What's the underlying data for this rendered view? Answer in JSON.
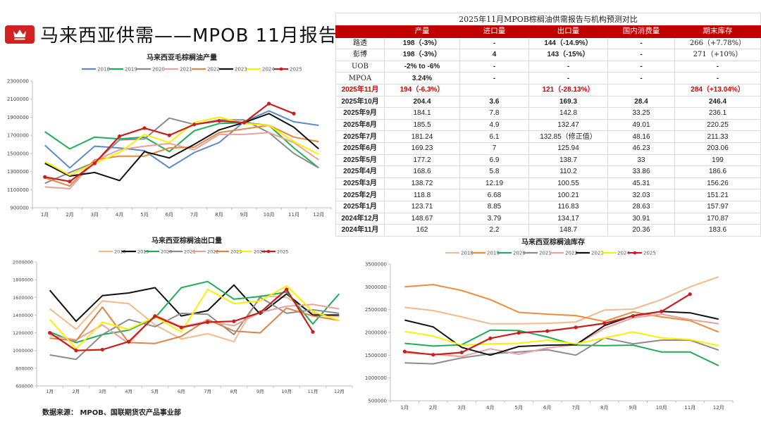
{
  "header": {
    "title": "马来西亚供需——MPOB 11月报告",
    "badge_icon": "crown-icon"
  },
  "table": {
    "caption": "2025年11月MPOB棕榈油供需报告与机构预测对比",
    "columns": [
      "",
      "产量",
      "进口量",
      "出口量",
      "国内消费量",
      "期末库存"
    ],
    "forecast_rows": [
      {
        "label": "路透",
        "cells": [
          "198（-3%）",
          "-",
          "144（-14.9%）",
          "-",
          "266（+7.78%）"
        ]
      },
      {
        "label": "彭博",
        "cells": [
          "198（-3%）",
          "4",
          "143（-15%）",
          "-",
          "271（+10%）"
        ]
      },
      {
        "label": "UOB",
        "cells": [
          "-2% to -6%",
          "-",
          "-",
          "-",
          "-"
        ]
      },
      {
        "label": "MPOA",
        "cells": [
          "3.24%",
          "-",
          "-",
          "-",
          "-"
        ]
      }
    ],
    "actual_row": {
      "label": "2025年11月",
      "cells": [
        "194（-6.3%）",
        "",
        "121（-28.13%）",
        "",
        "284（+13.04%）"
      ]
    },
    "prev_row": {
      "label": "2025年10月",
      "cells": [
        "204.4",
        "3.6",
        "169.3",
        "28.4",
        "246.4"
      ]
    },
    "history_rows": [
      {
        "label": "2025年9月",
        "cells": [
          "184.1",
          "7.8",
          "142.8",
          "33.25",
          "236.1"
        ]
      },
      {
        "label": "2025年8月",
        "cells": [
          "185.5",
          "4.9",
          "132.47",
          "49.01",
          "220.25"
        ]
      },
      {
        "label": "2025年7月",
        "cells": [
          "181.24",
          "6.1",
          "132.85（修正值）",
          "48.16",
          "211.33"
        ]
      },
      {
        "label": "2025年6月",
        "cells": [
          "169.23",
          "7",
          "125.94",
          "46.23",
          "203.06"
        ]
      },
      {
        "label": "2025年5月",
        "cells": [
          "177.2",
          "6.9",
          "138.7",
          "33",
          "199"
        ]
      },
      {
        "label": "2025年4月",
        "cells": [
          "168.6",
          "5.8",
          "110.2",
          "33.86",
          "186.6"
        ]
      },
      {
        "label": "2025年3月",
        "cells": [
          "138.72",
          "12.19",
          "100.55",
          "45.31",
          "156.26"
        ]
      },
      {
        "label": "2025年2月",
        "cells": [
          "118.8",
          "6.68",
          "100.21",
          "32.03",
          "151.21"
        ]
      },
      {
        "label": "2025年1月",
        "cells": [
          "123.71",
          "8.85",
          "116.83",
          "28.63",
          "157.97"
        ]
      },
      {
        "label": "2024年12月",
        "cells": [
          "148.67",
          "3.79",
          "134.17",
          "30.91",
          "170.87"
        ]
      },
      {
        "label": "2024年11月",
        "cells": [
          "162",
          "2.2",
          "148.7",
          "20.36",
          "183.6"
        ]
      }
    ]
  },
  "source_note": "数据来源：  MPOB、国联期货农产品事业部",
  "chart_data": [
    {
      "id": "production",
      "type": "line",
      "title": "马来西亚毛棕榈油产量",
      "xlabel": "",
      "ylabel": "",
      "categories": [
        "1月",
        "2月",
        "3月",
        "4月",
        "5月",
        "6月",
        "7月",
        "8月",
        "9月",
        "10月",
        "11月",
        "12月"
      ],
      "ylim": [
        900000,
        2300000
      ],
      "yticks": [
        900000,
        1100000,
        1300000,
        1500000,
        1700000,
        1900000,
        2100000,
        2300000
      ],
      "legend": "top",
      "grid": false,
      "series": [
        {
          "name": "2018",
          "color": "#5b8cc8",
          "values": [
            1590000,
            1340000,
            1580000,
            1560000,
            1530000,
            1340000,
            1510000,
            1620000,
            1850000,
            1970000,
            1850000,
            1810000
          ]
        },
        {
          "name": "2019",
          "color": "#1fae58",
          "values": [
            1740000,
            1550000,
            1680000,
            1660000,
            1680000,
            1520000,
            1750000,
            1830000,
            1840000,
            1810000,
            1560000,
            1340000
          ]
        },
        {
          "name": "2020",
          "color": "#8c8c8c",
          "values": [
            1170000,
            1290000,
            1400000,
            1650000,
            1660000,
            1890000,
            1820000,
            1870000,
            1870000,
            1730000,
            1500000,
            1340000
          ]
        },
        {
          "name": "2021",
          "color": "#e8a0a0",
          "values": [
            1130000,
            1110000,
            1420000,
            1540000,
            1580000,
            1610000,
            1540000,
            1710000,
            1710000,
            1730000,
            1620000,
            1430000
          ]
        },
        {
          "name": "2022",
          "color": "#e38a3c",
          "values": [
            1230000,
            1140000,
            1430000,
            1470000,
            1470000,
            1560000,
            1570000,
            1730000,
            1770000,
            1810000,
            1680000,
            1630000
          ]
        },
        {
          "name": "2023",
          "color": "#111111",
          "values": [
            1390000,
            1250000,
            1290000,
            1200000,
            1520000,
            1450000,
            1600000,
            1760000,
            1840000,
            1940000,
            1790000,
            1550000
          ]
        },
        {
          "name": "2024",
          "color": "#ffee00",
          "values": [
            1410000,
            1260000,
            1390000,
            1510000,
            1710000,
            1620000,
            1840000,
            1900000,
            1830000,
            1810000,
            1630000,
            1490000
          ]
        },
        {
          "name": "2025",
          "color": "#c81e1e",
          "marker": true,
          "values": [
            1240000,
            1190000,
            1390000,
            1690000,
            1780000,
            1700000,
            1820000,
            1860000,
            1840000,
            2050000,
            1940000,
            null
          ]
        }
      ]
    },
    {
      "id": "exports",
      "type": "line",
      "title": "马来西亚棕榈油出口量",
      "xlabel": "",
      "ylabel": "",
      "categories": [
        "1月",
        "2月",
        "3月",
        "4月",
        "5月",
        "6月",
        "7月",
        "8月",
        "9月",
        "10月",
        "11月",
        "12月"
      ],
      "ylim": [
        600000,
        2000000
      ],
      "yticks": [
        600000,
        800000,
        1000000,
        1200000,
        1400000,
        1600000,
        1800000,
        2000000
      ],
      "legend": "top",
      "grid": false,
      "series": [
        {
          "name": "2018",
          "color": "#f5b98a",
          "values": [
            1470000,
            1240000,
            1560000,
            1530000,
            1290000,
            1130000,
            1190000,
            1100000,
            1620000,
            1600000,
            1420000,
            1380000
          ]
        },
        {
          "name": "2019",
          "color": "#111111",
          "values": [
            1680000,
            1330000,
            1620000,
            1650000,
            1710000,
            1390000,
            1450000,
            1740000,
            1410000,
            1640000,
            1400000,
            1400000
          ]
        },
        {
          "name": "2020",
          "color": "#1fae58",
          "values": [
            1210000,
            1090000,
            1180000,
            1230000,
            1370000,
            1710000,
            1780000,
            1580000,
            1610000,
            1660000,
            1300000,
            1640000
          ]
        },
        {
          "name": "2021",
          "color": "#8c8c8c",
          "values": [
            950000,
            900000,
            1180000,
            1350000,
            1270000,
            1420000,
            1410000,
            1180000,
            1600000,
            1420000,
            1460000,
            1420000
          ]
        },
        {
          "name": "2022",
          "color": "#e8a0a0",
          "values": [
            1170000,
            1120000,
            1290000,
            1080000,
            1400000,
            1270000,
            1330000,
            1280000,
            1430000,
            1500000,
            1520000,
            1470000
          ]
        },
        {
          "name": "2023",
          "color": "#d9844a",
          "values": [
            1140000,
            1110000,
            1490000,
            1090000,
            1080000,
            1160000,
            1350000,
            1220000,
            1200000,
            1480000,
            1390000,
            1340000
          ]
        },
        {
          "name": "2024",
          "color": "#ffee00",
          "values": [
            1350000,
            1020000,
            1320000,
            1240000,
            1380000,
            1210000,
            1690000,
            1530000,
            1560000,
            1730000,
            1440000,
            1340000
          ]
        },
        {
          "name": "2025",
          "color": "#c81e1e",
          "marker": true,
          "values": [
            1200000,
            1000000,
            1010000,
            1100000,
            1390000,
            1260000,
            1320000,
            1330000,
            1430000,
            1690000,
            1210000,
            null
          ]
        }
      ]
    },
    {
      "id": "inventory",
      "type": "line",
      "title": "马来西亚棕榈油库存",
      "xlabel": "",
      "ylabel": "",
      "categories": [
        "1月",
        "2月",
        "3月",
        "4月",
        "5月",
        "6月",
        "7月",
        "8月",
        "9月",
        "10月",
        "11月",
        "12月"
      ],
      "ylim": [
        500000,
        3500000
      ],
      "yticks": [
        500000,
        1000000,
        1500000,
        2000000,
        2500000,
        3000000,
        3500000
      ],
      "legend": "top",
      "grid": false,
      "series": [
        {
          "name": "2018",
          "color": "#f5b98a",
          "values": [
            2550000,
            2480000,
            2340000,
            2190000,
            2190000,
            2200000,
            2230000,
            2490000,
            2510000,
            2720000,
            3000000,
            3220000
          ]
        },
        {
          "name": "2019",
          "color": "#ef8c3c",
          "values": [
            3000000,
            3050000,
            2920000,
            2720000,
            2440000,
            2400000,
            2370000,
            2240000,
            2450000,
            2340000,
            2260000,
            2010000
          ]
        },
        {
          "name": "2020",
          "color": "#1fae58",
          "values": [
            1760000,
            1700000,
            1730000,
            2050000,
            2040000,
            1900000,
            1720000,
            1710000,
            1720000,
            1570000,
            1570000,
            1270000
          ]
        },
        {
          "name": "2021",
          "color": "#8c8c8c",
          "values": [
            1330000,
            1310000,
            1440000,
            1530000,
            1570000,
            1620000,
            1500000,
            1880000,
            1750000,
            1830000,
            1830000,
            1610000
          ]
        },
        {
          "name": "2022",
          "color": "#e8a0a0",
          "values": [
            1550000,
            1520000,
            1470000,
            1640000,
            1520000,
            1660000,
            1730000,
            2090000,
            2320000,
            2400000,
            2280000,
            2190000
          ]
        },
        {
          "name": "2023",
          "color": "#111111",
          "values": [
            2270000,
            2120000,
            1670000,
            1500000,
            1690000,
            1720000,
            1730000,
            2150000,
            2370000,
            2460000,
            2430000,
            2290000
          ]
        },
        {
          "name": "2024",
          "color": "#ffee00",
          "values": [
            2020000,
            1920000,
            1720000,
            1750000,
            1760000,
            1830000,
            1750000,
            1880000,
            2010000,
            1880000,
            1840000,
            1710000
          ]
        },
        {
          "name": "2025",
          "color": "#c81e1e",
          "marker": true,
          "values": [
            1580000,
            1510000,
            1560000,
            1870000,
            1990000,
            2030000,
            2110000,
            2200000,
            2360000,
            2460000,
            2840000,
            null
          ]
        }
      ]
    }
  ]
}
